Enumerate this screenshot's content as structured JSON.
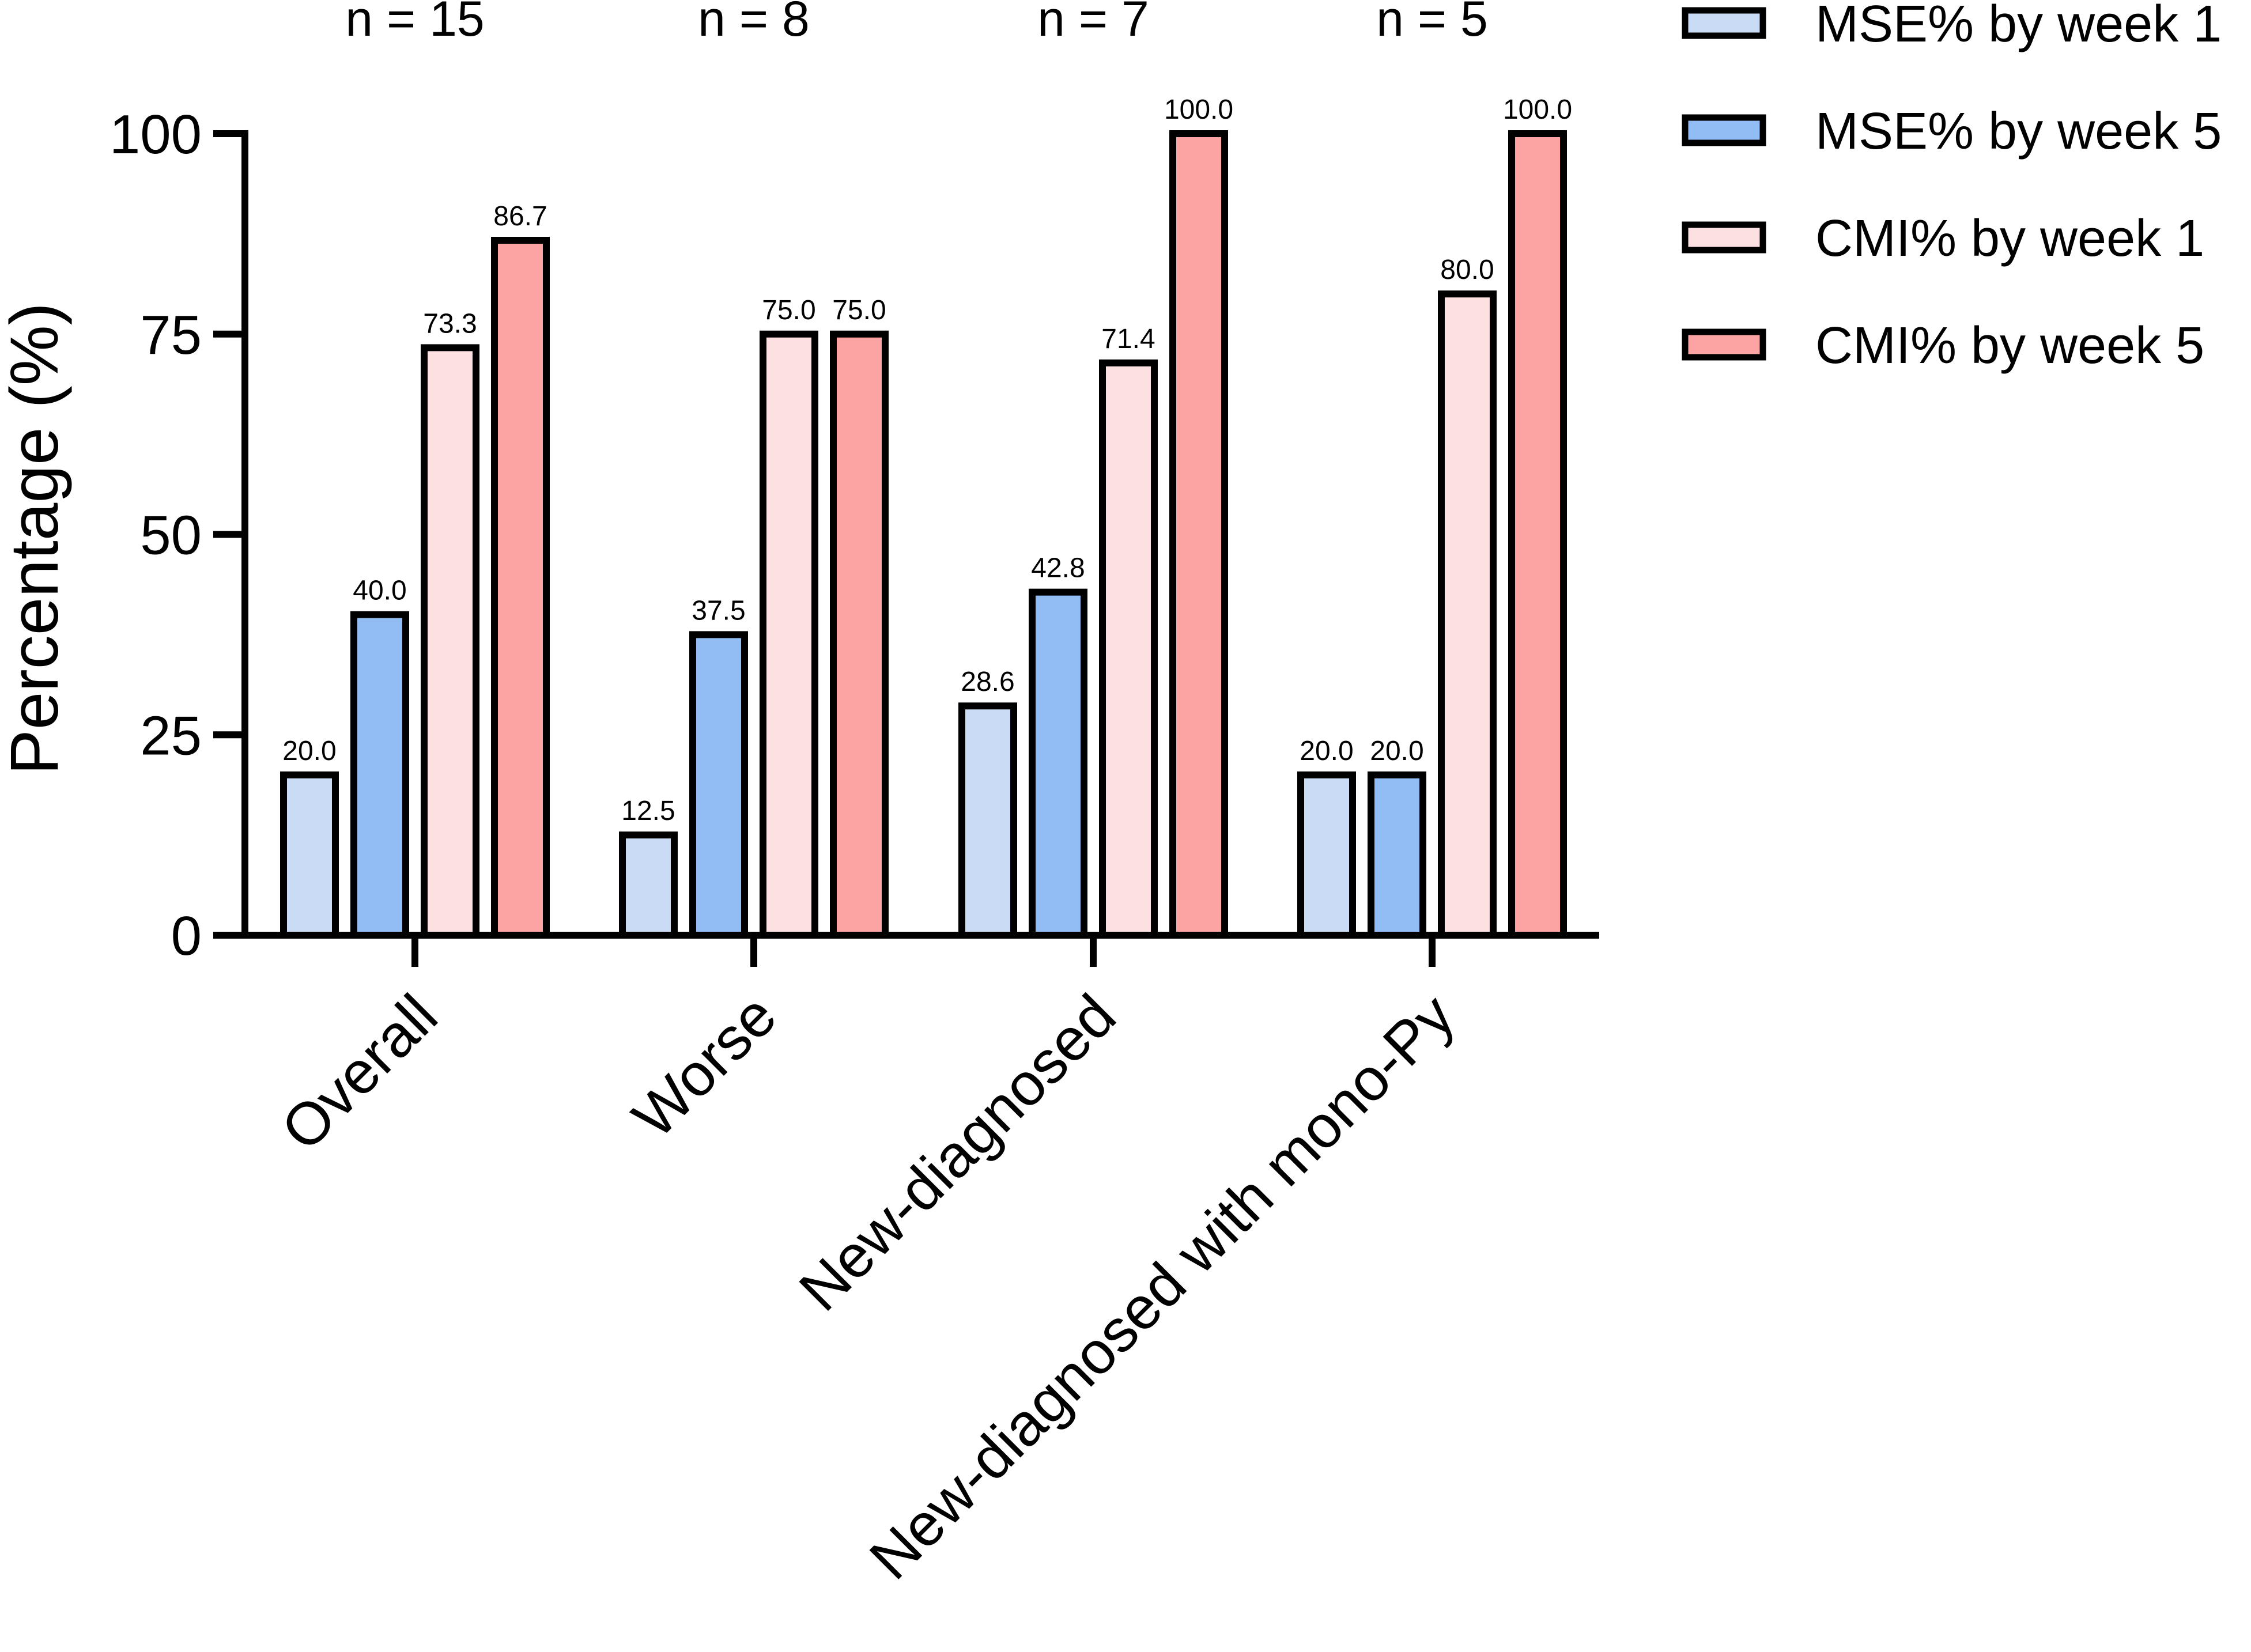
{
  "chart_data": {
    "type": "bar",
    "title": "",
    "xlabel": "",
    "ylabel": "Percentage (%)",
    "ylim": [
      0,
      100
    ],
    "yticks": [
      0,
      25,
      50,
      75,
      100
    ],
    "grid": false,
    "legend_position": "top-right",
    "categories": [
      "Overall",
      "Worse",
      "New-diagnosed",
      "New-diagnosed with mono-Py"
    ],
    "group_counts": [
      "n = 15",
      "n = 8",
      "n = 7",
      "n = 5"
    ],
    "series": [
      {
        "name": "MSE% by week 1",
        "color": "#cadcf5",
        "values": [
          20.0,
          12.5,
          28.6,
          20.0
        ],
        "labels": [
          "20.0",
          "12.5",
          "28.6",
          "20.0"
        ]
      },
      {
        "name": "MSE% by week 5",
        "color": "#92bcf4",
        "values": [
          40.0,
          37.5,
          42.8,
          20.0
        ],
        "labels": [
          "40.0",
          "37.5",
          "42.8",
          "20.0"
        ]
      },
      {
        "name": "CMI% by week 1",
        "color": "#fde0e1",
        "values": [
          73.3,
          75.0,
          71.4,
          80.0
        ],
        "labels": [
          "73.3",
          "75.0",
          "71.4",
          "80.0"
        ]
      },
      {
        "name": "CMI% by week 5",
        "color": "#fca3a4",
        "values": [
          86.7,
          75.0,
          100.0,
          100.0
        ],
        "labels": [
          "86.7",
          "75.0",
          "100.0",
          "100.0"
        ]
      }
    ]
  }
}
